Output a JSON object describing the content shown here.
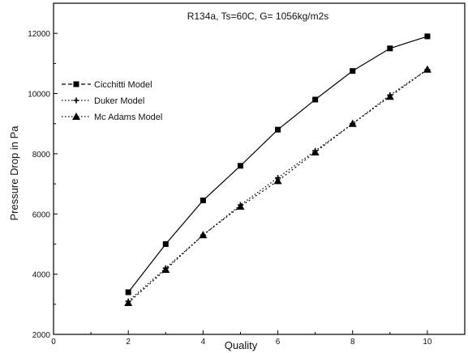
{
  "chart_data": {
    "type": "line",
    "title": "R134a, Ts=60C, G= 1056kg/m2s",
    "xlabel": "Quality",
    "ylabel": "Pressure Drop in Pa",
    "xlim": [
      0,
      11
    ],
    "ylim": [
      2000,
      13000
    ],
    "x_ticks": [
      "0",
      "2",
      "4",
      "6",
      "8",
      "10"
    ],
    "y_ticks": [
      "2000",
      "4000",
      "6000",
      "8000",
      "10000",
      "12000"
    ],
    "legend_position": "top-left",
    "grid": false,
    "series": [
      {
        "name": "Cicchitti Model",
        "marker": "square",
        "line_style": "solid",
        "x": [
          2,
          3,
          4,
          5,
          6,
          7,
          8,
          9,
          10
        ],
        "y": [
          3400,
          5000,
          6450,
          7600,
          8800,
          9800,
          10750,
          11500,
          11900
        ]
      },
      {
        "name": "Duker Model",
        "marker": "plus",
        "line_style": "dotted",
        "x": [
          2,
          3,
          4,
          5,
          6,
          7,
          8,
          9,
          10
        ],
        "y": [
          3100,
          4200,
          5300,
          6300,
          7200,
          8100,
          9000,
          9950,
          10800
        ]
      },
      {
        "name": "Mc Adams Model",
        "marker": "triangle",
        "line_style": "dotted",
        "x": [
          2,
          3,
          4,
          5,
          6,
          7,
          8,
          9,
          10
        ],
        "y": [
          3050,
          4150,
          5300,
          6250,
          7100,
          8050,
          9000,
          9900,
          10800
        ]
      }
    ]
  }
}
